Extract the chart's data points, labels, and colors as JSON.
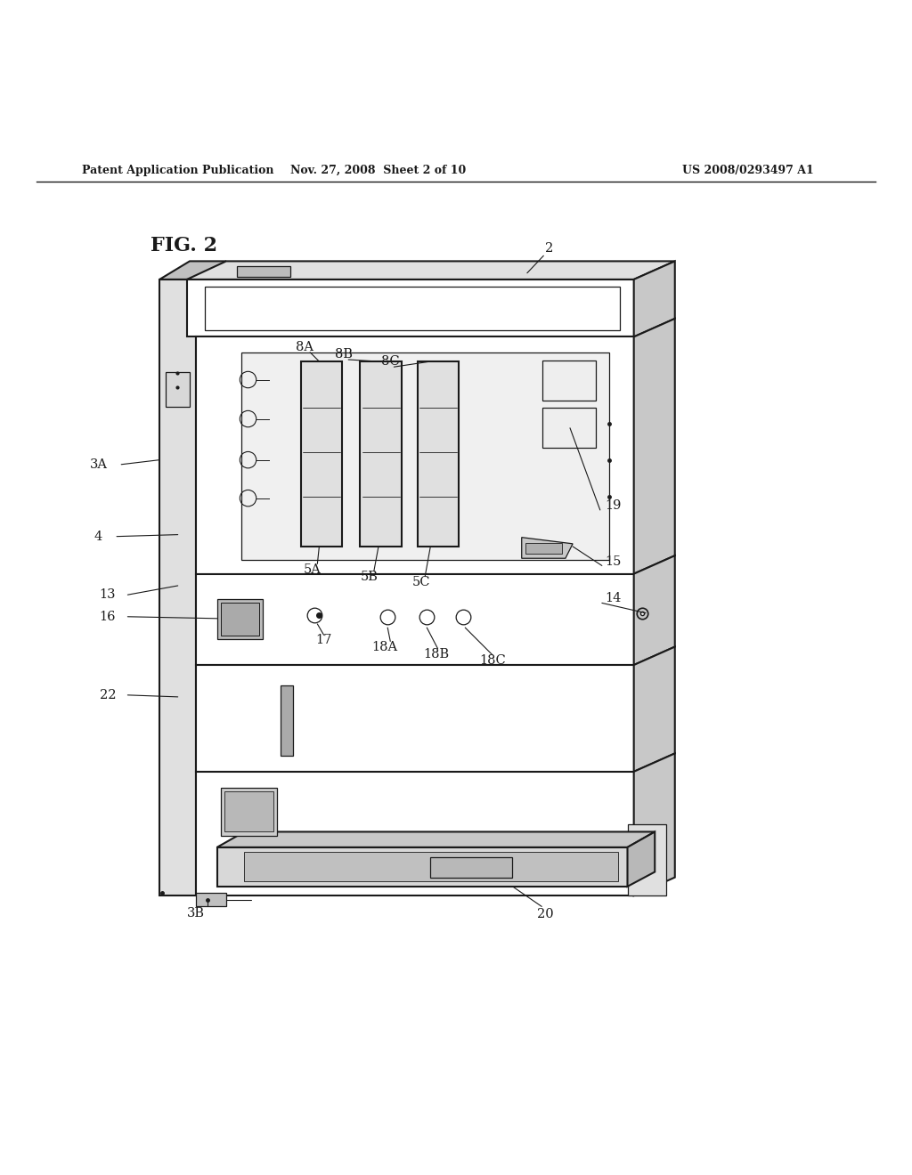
{
  "bg_color": "#ffffff",
  "line_color": "#1a1a1a",
  "header_left": "Patent Application Publication",
  "header_center": "Nov. 27, 2008  Sheet 2 of 10",
  "header_right": "US 2008/0293497 A1",
  "fig_label": "FIG. 2"
}
